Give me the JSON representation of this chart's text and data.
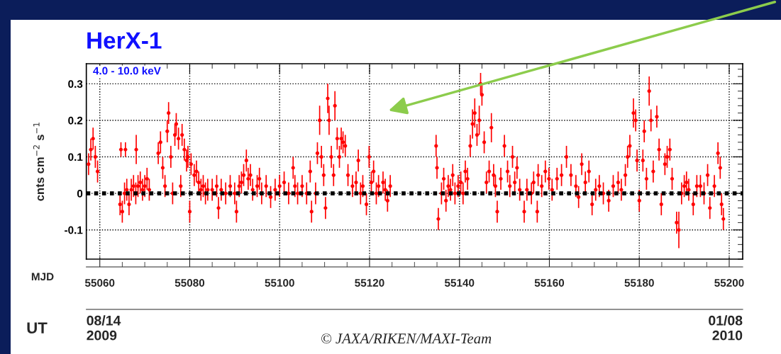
{
  "chart_data": {
    "type": "scatter",
    "title": "HerX-1",
    "ylabel": "cnts cm$^{−2}$ s$^{−1}$",
    "xlabel": "MJD",
    "x2label": "UT",
    "annotations": [
      "4.0 - 10.0 keV",
      "© JAXA/RIKEN/MAXI-Team"
    ],
    "xlim": [
      55057,
      55203
    ],
    "xticks": [
      55060,
      55080,
      55100,
      55120,
      55140,
      55160,
      55180,
      55200
    ],
    "x2lim": [
      "2009-08-14",
      "2010-01-08"
    ],
    "x2ticks": [
      {
        "value": "2009-08-14",
        "label": "08/14\n2009"
      },
      {
        "value": "2009-10-26",
        "label": null
      },
      {
        "value": "2010-01-08",
        "label": "01/08\n2010"
      }
    ],
    "ylim": [
      -0.18,
      0.355
    ],
    "yticks": [
      -0.1,
      0,
      0.1,
      0.2,
      0.3
    ],
    "grid": true,
    "marker": "circle",
    "ref_lines": [
      {
        "axis": "y",
        "value": 0,
        "label": null,
        "color": "#000000",
        "line_style": "dotted"
      }
    ],
    "series": [
      {
        "color": "#ff0000",
        "x": [
          55057.5,
          55058,
          55058.5,
          55059,
          55059.5,
          55064.5,
          55064.7,
          55065,
          55065.5,
          55065.7,
          55066,
          55066.5,
          55067,
          55067.5,
          55068,
          55068.1,
          55068.5,
          55069,
          55069.5,
          55070,
          55070.5,
          55071,
          55073,
          55073.5,
          55074,
          55074.5,
          55075,
          55075.3,
          55075.8,
          55076.2,
          55076.7,
          55077,
          55077.5,
          55078,
          55078.3,
          55078.8,
          55079.3,
          55079.6,
          55080,
          55080.3,
          55081,
          55081.5,
          55082,
          55082.5,
          55083,
          55083.5,
          55084,
          55085,
          55086,
          55086.4,
          55087,
          55088,
          55089,
          55090,
          55090.4,
          55091,
          55091.5,
          55092,
          55092.6,
          55093,
          55093.5,
          55094,
          55095,
          55095.5,
          55096,
          55097,
          55098,
          55099,
          55100,
          55101,
          55102,
          55103,
          55103.4,
          55104,
          55105,
          55106,
          55106.8,
          55107.1,
          55108,
          55108.4,
          55108.9,
          55109.3,
          55109.8,
          55110.2,
          55110.7,
          55111,
          55111.5,
          55112,
          55112.3,
          55112.8,
          55113.3,
          55113.7,
          55114.1,
          55114.6,
          55115.2,
          55116.2,
          55117,
          55117.5,
          55118,
          55118.5,
          55119.3,
          55119.9,
          55120.4,
          55120.9,
          55121.5,
          55122,
          55123,
          55123.5,
          55124,
          55124.6,
          55134.8,
          55135,
          55135.3,
          55136,
          55136.5,
          55137,
          55137.5,
          55138,
          55138.5,
          55139,
          55139.7,
          55140.3,
          55140.8,
          55141.3,
          55141.8,
          55142.4,
          55142.9,
          55143.4,
          55143.9,
          55144.4,
          55144.7,
          55145,
          55145.5,
          55146,
          55146.6,
          55147.1,
          55147.6,
          55148,
          55148.4,
          55149.2,
          55150,
          55150.7,
          55151.2,
          55151.8,
          55152.3,
          55152.8,
          55153.4,
          55154.4,
          55155,
          55156,
          55156.5,
          55157.3,
          55157.5,
          55158.3,
          55159.1,
          55159.9,
          55160.6,
          55161.7,
          55162.7,
          55163.8,
          55164.8,
          55165.9,
          55166.5,
          55167.2,
          55168,
          55168.8,
          55169.5,
          55170.3,
          55171.1,
          55172,
          55173.2,
          55174.2,
          55175.3,
          55176,
          55176.9,
          55177.4,
          55177.9,
          55178.7,
          55179.2,
          55179.5,
          55180,
          55180.8,
          55181.1,
          55181.6,
          55182.2,
          55182.6,
          55183.1,
          55183.9,
          55184.4,
          55184.9,
          55185.7,
          55186.2,
          55186.8,
          55187.3,
          55188.3,
          55188.8,
          55189.4,
          55190,
          55190.5,
          55191,
          55192,
          55192.8,
          55193.6,
          55194.4,
          55195.2,
          55195.7,
          55196.7,
          55197.5,
          55198,
          55198.3,
          55198.7
        ],
        "values": [
          0.08,
          0.12,
          0.15,
          0.1,
          0.06,
          -0.03,
          0.12,
          -0.05,
          0,
          0.12,
          0.01,
          -0.03,
          0.01,
          0.02,
          0,
          0.12,
          0.02,
          0.03,
          0.01,
          0.02,
          0.04,
          0.01,
          0.11,
          0.14,
          0.07,
          0.02,
          0.17,
          0.22,
          0.1,
          0,
          0.16,
          0.19,
          0.15,
          0.02,
          0.16,
          0.12,
          0.09,
          0.1,
          -0.05,
          0.08,
          0.05,
          0.06,
          0.03,
          0.01,
          0.02,
          0,
          0.01,
          0.01,
          0.02,
          -0.04,
          0.01,
          0,
          0.02,
          0,
          -0.05,
          0.02,
          0.03,
          0.05,
          0.09,
          0.04,
          0.05,
          0.01,
          0.02,
          0.04,
          0,
          0.02,
          -0.01,
          0.01,
          0.02,
          0.03,
          0,
          0.07,
          0.02,
          0,
          0.02,
          0,
          0.06,
          -0.05,
          0,
          0.11,
          0.2,
          0.1,
          0.05,
          -0.04,
          0.26,
          0.2,
          0.1,
          0.05,
          0.24,
          0.15,
          0.1,
          0.15,
          0.14,
          0.13,
          0.05,
          0.02,
          0.03,
          0.09,
          0,
          0.02,
          -0.03,
          0.1,
          0.03,
          0.06,
          0,
          0.02,
          0.03,
          0.01,
          -0.02,
          0.02,
          0.13,
          0.07,
          -0.07,
          0,
          0.04,
          -0.02,
          0.02,
          0.01,
          0.05,
          0,
          0.02,
          0.03,
          0,
          0.06,
          0.04,
          0.13,
          0.19,
          0.22,
          0.16,
          0.2,
          0.3,
          0.27,
          0.14,
          0.03,
          0.06,
          0.18,
          0.05,
          0.02,
          -0.05,
          0.04,
          0.13,
          0.06,
          0.02,
          0.1,
          0.03,
          0.07,
          0.01,
          -0.05,
          0.01,
          0,
          0.03,
          -0.05,
          0.05,
          0.02,
          0.06,
          0.04,
          0.01,
          0.04,
          0.05,
          0.1,
          0.05,
          0.02,
          -0.01,
          0.08,
          0.03,
          0.06,
          -0.03,
          0.01,
          0.02,
          0,
          -0.02,
          0.02,
          0.03,
          0.01,
          0.05,
          0.1,
          0.13,
          0.22,
          0.2,
          0.09,
          -0.02,
          0.09,
          0.17,
          0.04,
          0.28,
          0.2,
          0.06,
          0.21,
          0.12,
          -0.03,
          0.08,
          0.1,
          0.12,
          0.04,
          -0.08,
          -0.1,
          0,
          0.02,
          0.03,
          0.01,
          -0.03,
          0.02,
          0.02,
          0,
          0.05,
          -0.04,
          0.02,
          0.11,
          0.07,
          -0.03,
          -0.07
        ],
        "errors": [
          0.03,
          0.03,
          0.03,
          0.03,
          0.03,
          0.03,
          0.02,
          0.03,
          0.03,
          0.02,
          0.03,
          0.03,
          0.03,
          0.03,
          0.03,
          0.04,
          0.03,
          0.03,
          0.03,
          0.03,
          0.03,
          0.03,
          0.03,
          0.03,
          0.03,
          0.03,
          0.03,
          0.03,
          0.03,
          0.03,
          0.03,
          0.03,
          0.03,
          0.03,
          0.03,
          0.03,
          0.03,
          0.03,
          0.03,
          0.03,
          0.03,
          0.03,
          0.03,
          0.03,
          0.03,
          0.03,
          0.03,
          0.03,
          0.03,
          0.03,
          0.03,
          0.03,
          0.03,
          0.03,
          0.03,
          0.03,
          0.03,
          0.03,
          0.03,
          0.03,
          0.03,
          0.03,
          0.03,
          0.03,
          0.03,
          0.03,
          0.03,
          0.03,
          0.03,
          0.03,
          0.03,
          0.03,
          0.03,
          0.03,
          0.03,
          0.03,
          0.03,
          0.03,
          0.03,
          0.03,
          0.04,
          0.03,
          0.03,
          0.03,
          0.04,
          0.04,
          0.03,
          0.03,
          0.04,
          0.03,
          0.03,
          0.03,
          0.03,
          0.03,
          0.03,
          0.03,
          0.03,
          0.03,
          0.03,
          0.03,
          0.03,
          0.03,
          0.03,
          0.03,
          0.03,
          0.03,
          0.03,
          0.03,
          0.03,
          0.03,
          0.03,
          0.03,
          0.03,
          0.03,
          0.03,
          0.03,
          0.03,
          0.03,
          0.03,
          0.03,
          0.03,
          0.03,
          0.03,
          0.03,
          0.03,
          0.03,
          0.04,
          0.04,
          0.03,
          0.04,
          0.03,
          0.03,
          0.03,
          0.03,
          0.03,
          0.04,
          0.03,
          0.03,
          0.03,
          0.03,
          0.03,
          0.03,
          0.03,
          0.03,
          0.03,
          0.03,
          0.03,
          0.03,
          0.03,
          0.03,
          0.03,
          0.03,
          0.03,
          0.03,
          0.03,
          0.03,
          0.03,
          0.03,
          0.03,
          0.03,
          0.03,
          0.03,
          0.03,
          0.03,
          0.03,
          0.03,
          0.03,
          0.03,
          0.03,
          0.03,
          0.03,
          0.03,
          0.03,
          0.03,
          0.03,
          0.03,
          0.03,
          0.04,
          0.03,
          0.03,
          0.03,
          0.03,
          0.03,
          0.03,
          0.04,
          0.03,
          0.03,
          0.03,
          0.03,
          0.03,
          0.03,
          0.03,
          0.03,
          0.03,
          0.03,
          0.05,
          0.03,
          0.03,
          0.03,
          0.03,
          0.03,
          0.03,
          0.03,
          0.03,
          0.03,
          0.03,
          0.03,
          0.03,
          0.03,
          0.03,
          0.03
        ]
      }
    ]
  }
}
